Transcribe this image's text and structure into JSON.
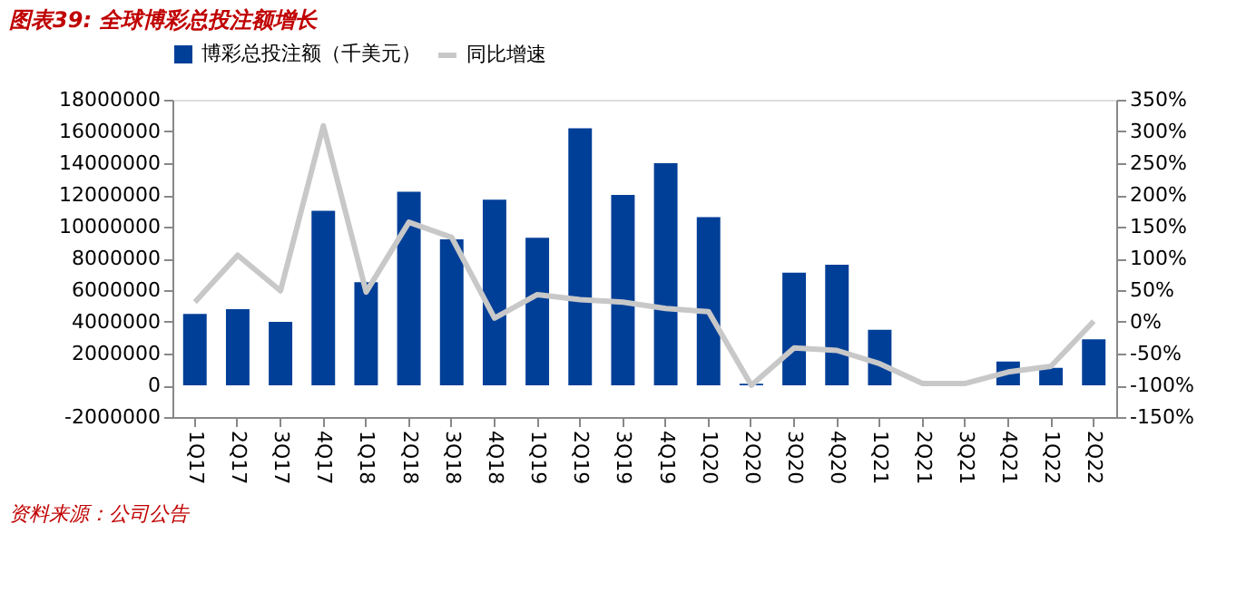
{
  "chart_data": {
    "type": "bar",
    "title": "图表39: 全球博彩总投注额增长",
    "annotations": [
      "资料来源：公司公告"
    ],
    "categories": [
      "1Q17",
      "2Q17",
      "3Q17",
      "4Q17",
      "1Q18",
      "2Q18",
      "3Q18",
      "4Q18",
      "1Q19",
      "2Q19",
      "3Q19",
      "4Q19",
      "1Q20",
      "2Q20",
      "3Q20",
      "4Q20",
      "1Q21",
      "2Q21",
      "3Q21",
      "4Q21",
      "1Q22",
      "2Q22"
    ],
    "series": [
      {
        "name": "博彩总投注额（千美元）",
        "color": "#003f98",
        "values": [
          4500000,
          4800000,
          4000000,
          11000000,
          6500000,
          12200000,
          9200000,
          11700000,
          9300000,
          16200000,
          12000000,
          14000000,
          10600000,
          100000,
          7100000,
          7600000,
          3500000,
          0,
          null,
          1500000,
          1100000,
          2900000
        ]
      },
      {
        "name": "同比增速",
        "color": "#c8c8c8",
        "type": "line",
        "axis": "y2",
        "values": [
          31,
          105,
          49,
          309,
          47,
          157,
          133,
          6,
          43,
          35,
          31,
          21,
          16,
          -100,
          -41,
          -45,
          -66,
          -97,
          -97,
          -79,
          -70,
          1
        ]
      }
    ],
    "ylim": [
      -2000000,
      18000000
    ],
    "yticks": [
      -2000000,
      0,
      2000000,
      4000000,
      6000000,
      8000000,
      10000000,
      12000000,
      14000000,
      16000000,
      18000000
    ],
    "y2lim": [
      -150,
      350
    ],
    "y2ticks": [
      {
        "value": -150,
        "label": "-150%"
      },
      {
        "value": -100,
        "label": "-100%"
      },
      {
        "value": -50,
        "label": "-50%"
      },
      {
        "value": 0,
        "label": "0%"
      },
      {
        "value": 50,
        "label": "50%"
      },
      {
        "value": 100,
        "label": "100%"
      },
      {
        "value": 150,
        "label": "150%"
      },
      {
        "value": 200,
        "label": "200%"
      },
      {
        "value": 250,
        "label": "250%"
      },
      {
        "value": 300,
        "label": "300%"
      },
      {
        "value": 350,
        "label": "350%"
      }
    ],
    "grid": false,
    "legend": "top"
  }
}
